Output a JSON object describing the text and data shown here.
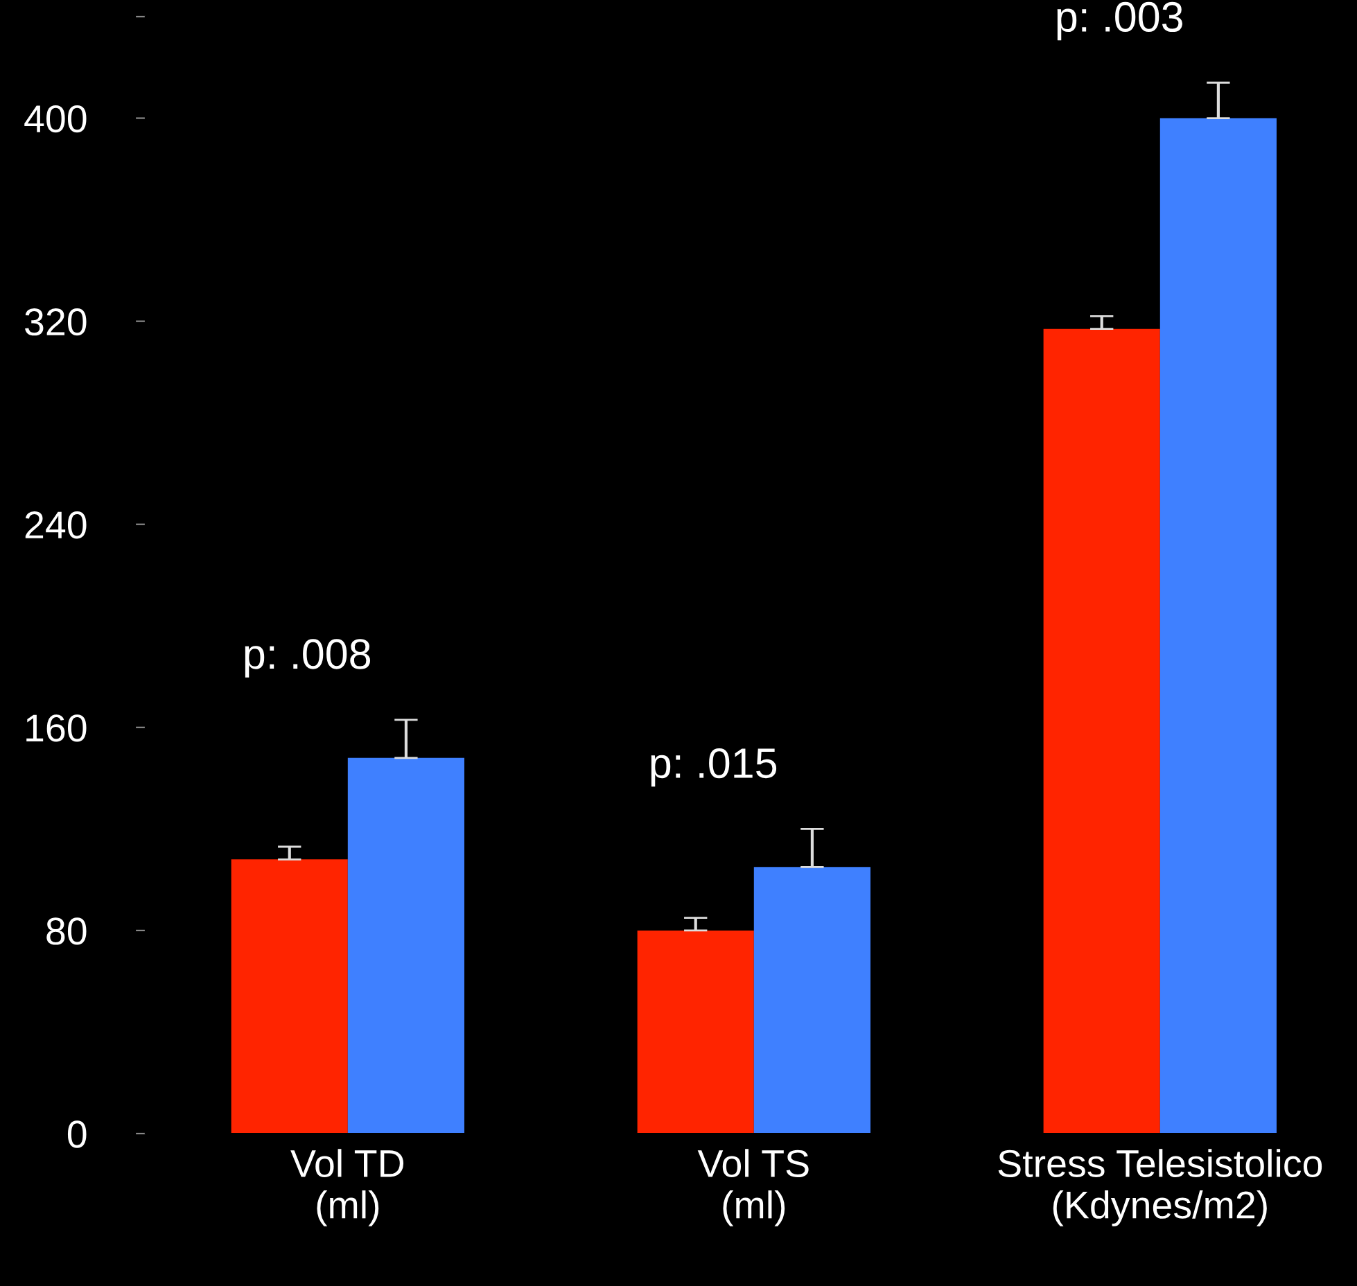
{
  "chart_data": {
    "type": "bar",
    "categories": [
      "Vol TD\n(ml)",
      "Vol TS\n(ml)",
      "Stress Telesistolico\n(Kdynes/m2)"
    ],
    "series": [
      {
        "color": "#ff2400",
        "values": [
          108,
          80,
          317
        ],
        "errors": [
          [
            108,
            113
          ],
          [
            80,
            85
          ],
          [
            317,
            322
          ]
        ]
      },
      {
        "color": "#3f80ff",
        "values": [
          148,
          105,
          400
        ],
        "errors": [
          [
            148,
            163
          ],
          [
            105,
            120
          ],
          [
            400,
            414
          ]
        ]
      }
    ],
    "ylim": [
      0,
      440
    ],
    "yticks": [
      0,
      80,
      160,
      240,
      320,
      400,
      {
        "value": 440,
        "label": null
      }
    ],
    "grid": false,
    "legend": false,
    "annotations": [
      "p: .008",
      "p: .015",
      "p: .003"
    ]
  }
}
